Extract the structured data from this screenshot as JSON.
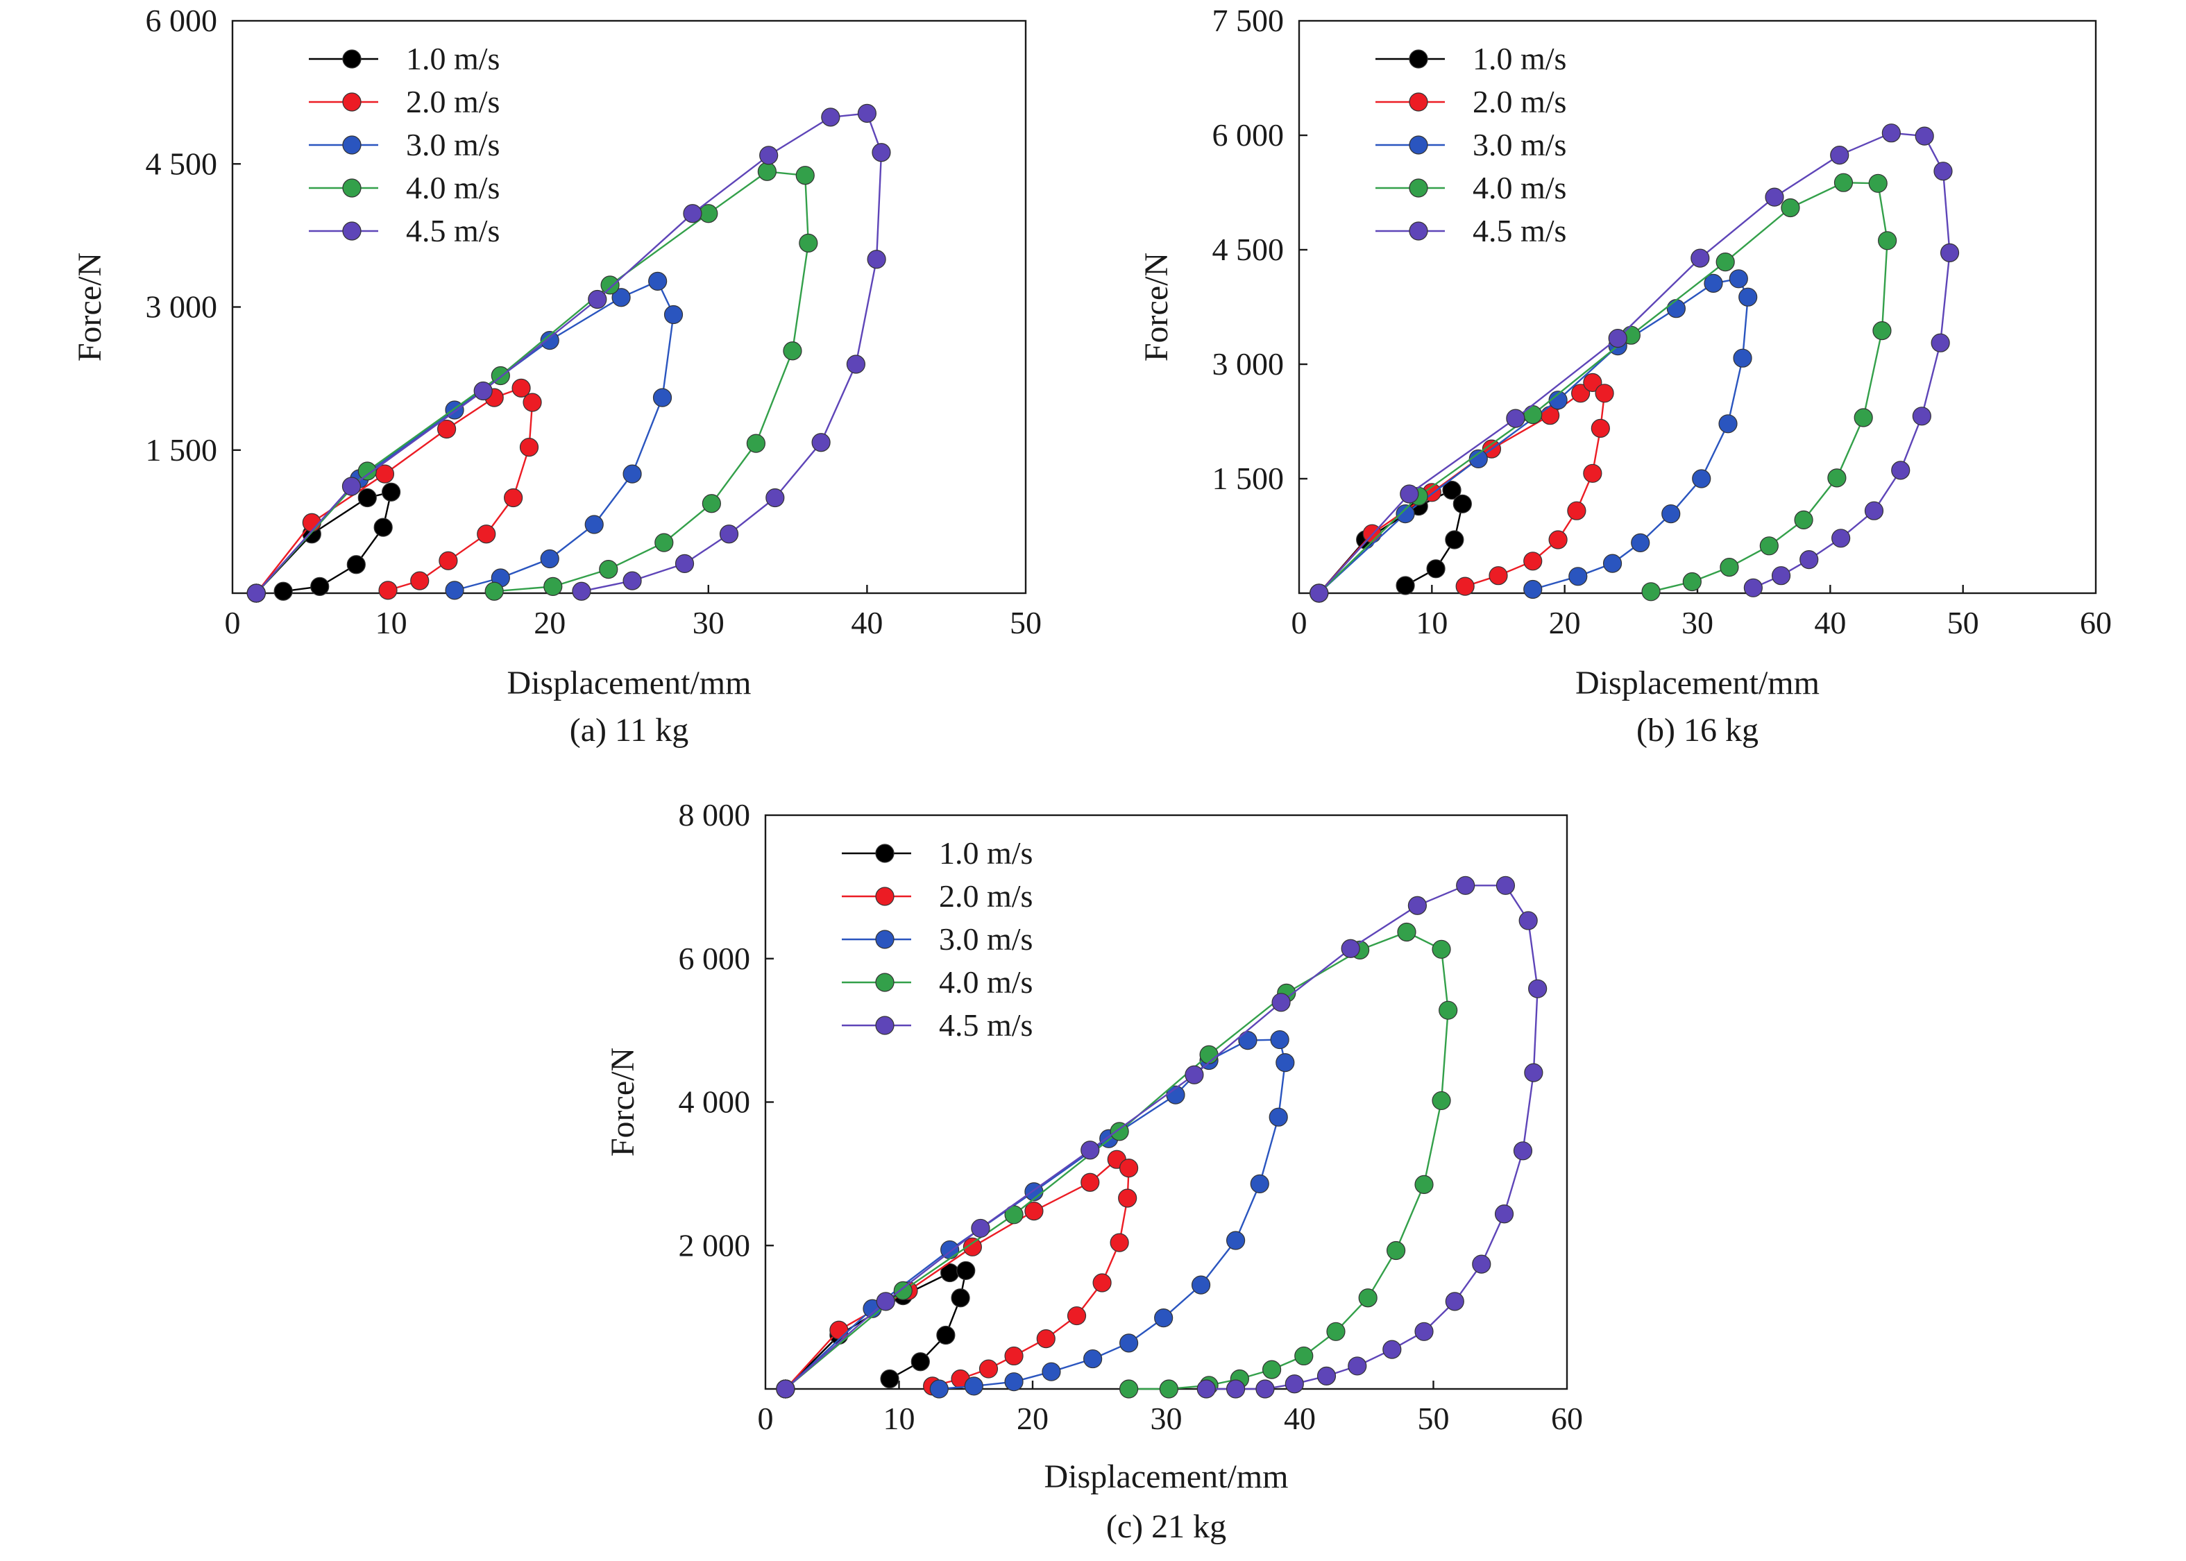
{
  "colors": {
    "1.0 m/s": "#000000",
    "2.0 m/s": "#ec1c24",
    "3.0 m/s": "#2a55bf",
    "4.0 m/s": "#33a04a",
    "4.5 m/s": "#5e45b8"
  },
  "chart_data": [
    {
      "type": "line",
      "caption": "(a) 11 kg",
      "xlabel": "Displacement/mm",
      "ylabel": "Force/N",
      "xlim": [
        0,
        50
      ],
      "ylim": [
        0,
        6000
      ],
      "x_ticks": [
        0,
        10,
        20,
        30,
        40,
        50
      ],
      "y_ticks": [
        1500,
        3000,
        4500,
        6000
      ],
      "x_tick_labels": [
        "0",
        "10",
        "20",
        "30",
        "40",
        "50"
      ],
      "y_tick_labels": [
        "1 500",
        "3 000",
        "4 500",
        "6 000"
      ],
      "grid": false,
      "legend_position": "top-left",
      "series": [
        {
          "name": "1.0 m/s",
          "points": [
            [
              1.5,
              0
            ],
            [
              5,
              620
            ],
            [
              8.5,
              1000
            ],
            [
              10,
              1060
            ],
            [
              9.5,
              690
            ],
            [
              7.8,
              300
            ],
            [
              5.5,
              70
            ],
            [
              3.2,
              20
            ]
          ]
        },
        {
          "name": "2.0 m/s",
          "points": [
            [
              1.5,
              0
            ],
            [
              5,
              740
            ],
            [
              9.6,
              1250
            ],
            [
              13.5,
              1720
            ],
            [
              16.5,
              2050
            ],
            [
              18.2,
              2150
            ],
            [
              18.9,
              2000
            ],
            [
              18.7,
              1530
            ],
            [
              17.7,
              1000
            ],
            [
              16,
              620
            ],
            [
              13.6,
              340
            ],
            [
              11.8,
              130
            ],
            [
              9.8,
              30
            ]
          ]
        },
        {
          "name": "3.0 m/s",
          "points": [
            [
              1.5,
              0
            ],
            [
              8,
              1200
            ],
            [
              14,
              1920
            ],
            [
              20,
              2650
            ],
            [
              24.5,
              3100
            ],
            [
              26.8,
              3270
            ],
            [
              27.8,
              2920
            ],
            [
              27.1,
              2050
            ],
            [
              25.2,
              1250
            ],
            [
              22.8,
              720
            ],
            [
              20,
              360
            ],
            [
              16.9,
              160
            ],
            [
              14,
              30
            ]
          ]
        },
        {
          "name": "4.0 m/s",
          "points": [
            [
              1.5,
              0
            ],
            [
              8.5,
              1280
            ],
            [
              16.9,
              2280
            ],
            [
              23.8,
              3230
            ],
            [
              30,
              3980
            ],
            [
              33.7,
              4420
            ],
            [
              36.1,
              4380
            ],
            [
              36.3,
              3670
            ],
            [
              35.3,
              2540
            ],
            [
              33,
              1570
            ],
            [
              30.2,
              940
            ],
            [
              27.2,
              530
            ],
            [
              23.7,
              250
            ],
            [
              20.2,
              70
            ],
            [
              16.5,
              20
            ]
          ]
        },
        {
          "name": "4.5 m/s",
          "points": [
            [
              1.5,
              0
            ],
            [
              7.5,
              1120
            ],
            [
              15.8,
              2120
            ],
            [
              23,
              3080
            ],
            [
              29,
              3980
            ],
            [
              33.8,
              4590
            ],
            [
              37.7,
              4990
            ],
            [
              40,
              5030
            ],
            [
              40.9,
              4620
            ],
            [
              40.6,
              3500
            ],
            [
              39.3,
              2400
            ],
            [
              37.1,
              1580
            ],
            [
              34.2,
              1000
            ],
            [
              31.3,
              620
            ],
            [
              28.5,
              310
            ],
            [
              25.2,
              130
            ],
            [
              22,
              20
            ]
          ]
        }
      ]
    },
    {
      "type": "line",
      "caption": "(b) 16 kg",
      "xlabel": "Displacement/mm",
      "ylabel": "Force/N",
      "xlim": [
        0,
        60
      ],
      "ylim": [
        0,
        7500
      ],
      "x_ticks": [
        0,
        10,
        20,
        30,
        40,
        50,
        60
      ],
      "y_ticks": [
        1500,
        3000,
        4500,
        6000,
        7500
      ],
      "x_tick_labels": [
        "0",
        "10",
        "20",
        "30",
        "40",
        "50",
        "60"
      ],
      "y_tick_labels": [
        "1 500",
        "3 000",
        "4 500",
        "6 000",
        "7 500"
      ],
      "grid": false,
      "legend_position": "top-left",
      "series": [
        {
          "name": "1.0 m/s",
          "points": [
            [
              1.5,
              0
            ],
            [
              5,
              700
            ],
            [
              9,
              1140
            ],
            [
              11.5,
              1350
            ],
            [
              12.3,
              1170
            ],
            [
              11.7,
              700
            ],
            [
              10.3,
              320
            ],
            [
              8,
              100
            ]
          ]
        },
        {
          "name": "2.0 m/s",
          "points": [
            [
              1.5,
              0
            ],
            [
              5.5,
              780
            ],
            [
              10,
              1320
            ],
            [
              14.5,
              1890
            ],
            [
              18.9,
              2330
            ],
            [
              21.2,
              2620
            ],
            [
              22.1,
              2760
            ],
            [
              23,
              2620
            ],
            [
              22.7,
              2160
            ],
            [
              22.1,
              1570
            ],
            [
              20.9,
              1080
            ],
            [
              19.5,
              700
            ],
            [
              17.6,
              420
            ],
            [
              15,
              230
            ],
            [
              12.5,
              90
            ]
          ]
        },
        {
          "name": "3.0 m/s",
          "points": [
            [
              1.5,
              0
            ],
            [
              8,
              1040
            ],
            [
              13.5,
              1760
            ],
            [
              19.5,
              2530
            ],
            [
              24,
              3240
            ],
            [
              28.4,
              3730
            ],
            [
              31.2,
              4060
            ],
            [
              33.1,
              4120
            ],
            [
              33.8,
              3880
            ],
            [
              33.4,
              3080
            ],
            [
              32.3,
              2220
            ],
            [
              30.3,
              1500
            ],
            [
              28,
              1040
            ],
            [
              25.7,
              660
            ],
            [
              23.6,
              390
            ],
            [
              21,
              220
            ],
            [
              17.6,
              50
            ]
          ]
        },
        {
          "name": "4.0 m/s",
          "points": [
            [
              1.5,
              0
            ],
            [
              9,
              1270
            ],
            [
              17.6,
              2340
            ],
            [
              25,
              3380
            ],
            [
              32.1,
              4340
            ],
            [
              37,
              5050
            ],
            [
              41,
              5380
            ],
            [
              43.6,
              5370
            ],
            [
              44.3,
              4620
            ],
            [
              43.9,
              3440
            ],
            [
              42.5,
              2300
            ],
            [
              40.5,
              1510
            ],
            [
              38,
              960
            ],
            [
              35.4,
              620
            ],
            [
              32.4,
              340
            ],
            [
              29.6,
              150
            ],
            [
              26.5,
              20
            ]
          ]
        },
        {
          "name": "4.5 m/s",
          "points": [
            [
              1.5,
              0
            ],
            [
              8.3,
              1300
            ],
            [
              16.3,
              2290
            ],
            [
              24,
              3340
            ],
            [
              30.2,
              4390
            ],
            [
              35.8,
              5190
            ],
            [
              40.7,
              5740
            ],
            [
              44.6,
              6030
            ],
            [
              47.1,
              5990
            ],
            [
              48.5,
              5530
            ],
            [
              49,
              4460
            ],
            [
              48.3,
              3280
            ],
            [
              46.9,
              2320
            ],
            [
              45.3,
              1610
            ],
            [
              43.3,
              1080
            ],
            [
              40.8,
              720
            ],
            [
              38.4,
              440
            ],
            [
              36.3,
              230
            ],
            [
              34.2,
              70
            ]
          ]
        }
      ]
    },
    {
      "type": "line",
      "caption": "(c) 21 kg",
      "xlabel": "Displacement/mm",
      "ylabel": "Force/N",
      "xlim": [
        0,
        60
      ],
      "ylim": [
        0,
        8000
      ],
      "x_ticks": [
        0,
        10,
        20,
        30,
        40,
        50,
        60
      ],
      "y_ticks": [
        2000,
        4000,
        6000,
        8000
      ],
      "x_tick_labels": [
        "0",
        "10",
        "20",
        "30",
        "40",
        "50",
        "60"
      ],
      "y_tick_labels": [
        "2 000",
        "4 000",
        "6 000",
        "8 000"
      ],
      "grid": false,
      "legend_position": "top-left",
      "series": [
        {
          "name": "1.0 m/s",
          "points": [
            [
              1.5,
              0
            ],
            [
              5.5,
              750
            ],
            [
              10.3,
              1300
            ],
            [
              13.8,
              1620
            ],
            [
              15,
              1650
            ],
            [
              14.6,
              1270
            ],
            [
              13.5,
              750
            ],
            [
              11.6,
              380
            ],
            [
              9.3,
              140
            ]
          ]
        },
        {
          "name": "2.0 m/s",
          "points": [
            [
              1.5,
              0
            ],
            [
              5.5,
              820
            ],
            [
              10.7,
              1370
            ],
            [
              15.5,
              1980
            ],
            [
              20.1,
              2480
            ],
            [
              24.3,
              2880
            ],
            [
              26.3,
              3200
            ],
            [
              27.2,
              3080
            ],
            [
              27.1,
              2660
            ],
            [
              26.5,
              2040
            ],
            [
              25.2,
              1480
            ],
            [
              23.3,
              1020
            ],
            [
              21,
              700
            ],
            [
              18.6,
              460
            ],
            [
              16.7,
              280
            ],
            [
              14.6,
              140
            ],
            [
              12.5,
              40
            ]
          ]
        },
        {
          "name": "3.0 m/s",
          "points": [
            [
              1.5,
              0
            ],
            [
              8,
              1120
            ],
            [
              13.8,
              1940
            ],
            [
              20.1,
              2750
            ],
            [
              25.7,
              3490
            ],
            [
              30.7,
              4100
            ],
            [
              33.2,
              4580
            ],
            [
              36.1,
              4860
            ],
            [
              38.5,
              4870
            ],
            [
              38.9,
              4550
            ],
            [
              38.4,
              3790
            ],
            [
              37,
              2860
            ],
            [
              35.2,
              2070
            ],
            [
              32.6,
              1450
            ],
            [
              29.8,
              990
            ],
            [
              27.2,
              640
            ],
            [
              24.5,
              420
            ],
            [
              21.4,
              240
            ],
            [
              18.6,
              100
            ],
            [
              15.6,
              40
            ],
            [
              13,
              0
            ]
          ]
        },
        {
          "name": "4.0 m/s",
          "points": [
            [
              1.5,
              0
            ],
            [
              10.3,
              1370
            ],
            [
              18.6,
              2430
            ],
            [
              26.5,
              3590
            ],
            [
              33.2,
              4660
            ],
            [
              39,
              5520
            ],
            [
              44.5,
              6120
            ],
            [
              48,
              6370
            ],
            [
              50.6,
              6130
            ],
            [
              51.1,
              5280
            ],
            [
              50.6,
              4020
            ],
            [
              49.3,
              2850
            ],
            [
              47.2,
              1930
            ],
            [
              45.1,
              1270
            ],
            [
              42.7,
              800
            ],
            [
              40.3,
              460
            ],
            [
              37.9,
              270
            ],
            [
              35.5,
              140
            ],
            [
              33.2,
              50
            ],
            [
              30.2,
              0
            ],
            [
              27.2,
              0
            ]
          ]
        },
        {
          "name": "4.5 m/s",
          "points": [
            [
              1.5,
              0
            ],
            [
              9,
              1220
            ],
            [
              16.1,
              2240
            ],
            [
              24.3,
              3330
            ],
            [
              32.1,
              4380
            ],
            [
              38.6,
              5390
            ],
            [
              43.8,
              6140
            ],
            [
              48.8,
              6740
            ],
            [
              52.4,
              7020
            ],
            [
              55.4,
              7020
            ],
            [
              57.1,
              6530
            ],
            [
              57.8,
              5580
            ],
            [
              57.5,
              4410
            ],
            [
              56.7,
              3320
            ],
            [
              55.3,
              2440
            ],
            [
              53.6,
              1740
            ],
            [
              51.6,
              1220
            ],
            [
              49.3,
              800
            ],
            [
              46.9,
              550
            ],
            [
              44.3,
              320
            ],
            [
              42,
              180
            ],
            [
              39.6,
              70
            ],
            [
              37.4,
              0
            ],
            [
              35.2,
              0
            ],
            [
              33,
              0
            ]
          ]
        }
      ]
    }
  ]
}
